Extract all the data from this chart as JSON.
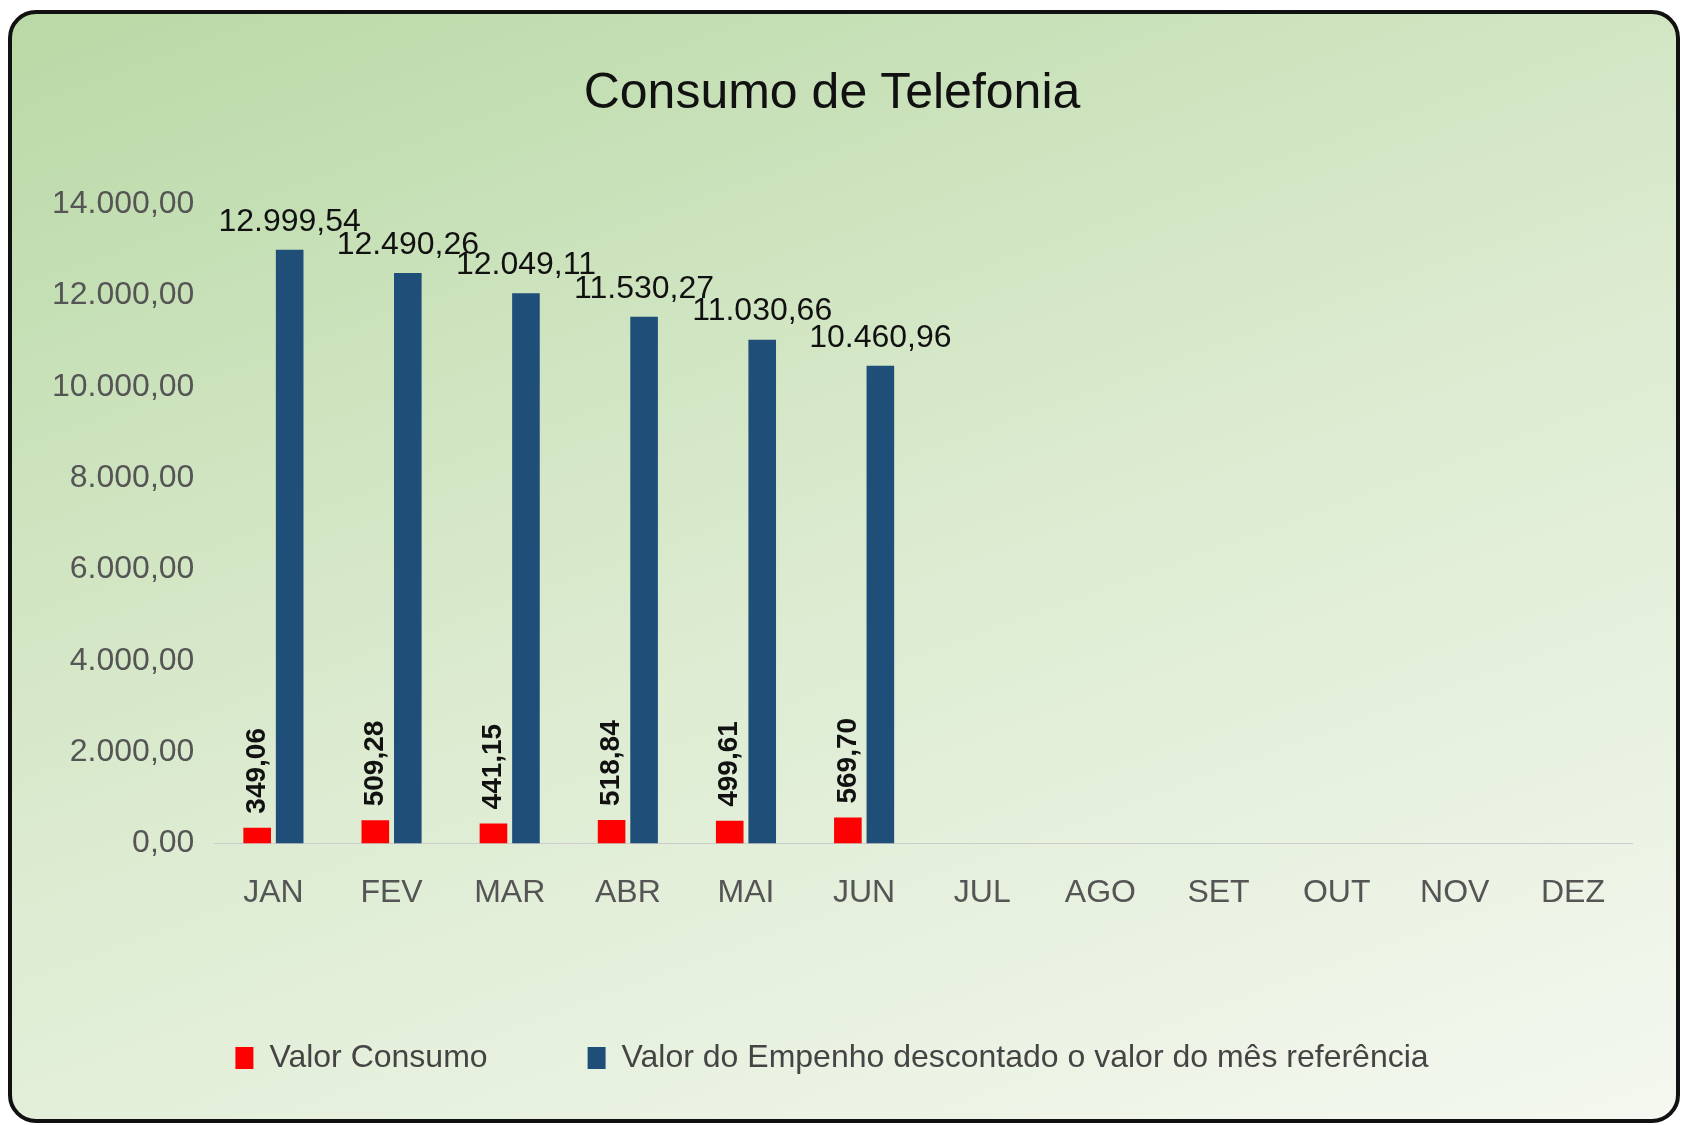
{
  "chart_data": {
    "type": "bar",
    "title": "Consumo de Telefonia",
    "categories": [
      "JAN",
      "FEV",
      "MAR",
      "ABR",
      "MAI",
      "JUN",
      "JUL",
      "AGO",
      "SET",
      "OUT",
      "NOV",
      "DEZ"
    ],
    "series": [
      {
        "name": "Valor Consumo",
        "color": "#ff0000",
        "values": [
          349.06,
          509.28,
          441.15,
          518.84,
          499.61,
          569.7,
          null,
          null,
          null,
          null,
          null,
          null
        ],
        "value_labels": [
          "349,06",
          "509,28",
          "441,15",
          "518,84",
          "499,61",
          "569,70",
          null,
          null,
          null,
          null,
          null,
          null
        ]
      },
      {
        "name": "Valor do Empenho descontado o valor do mês referência",
        "color": "#1f4e79",
        "values": [
          12999.54,
          12490.26,
          12049.11,
          11530.27,
          11030.66,
          10460.96,
          null,
          null,
          null,
          null,
          null,
          null
        ],
        "value_labels": [
          "12.999,54",
          "12.490,26",
          "12.049,11",
          "11.530,27",
          "11.030,66",
          "10.460,96",
          null,
          null,
          null,
          null,
          null,
          null
        ]
      }
    ],
    "ylim": [
      0,
      14000
    ],
    "yticks": [
      {
        "value": 0,
        "label": "0,00"
      },
      {
        "value": 2000,
        "label": "2.000,00"
      },
      {
        "value": 4000,
        "label": "4.000,00"
      },
      {
        "value": 6000,
        "label": "6.000,00"
      },
      {
        "value": 8000,
        "label": "8.000,00"
      },
      {
        "value": 10000,
        "label": "10.000,00"
      },
      {
        "value": 12000,
        "label": "12.000,00"
      },
      {
        "value": 14000,
        "label": "14.000,00"
      }
    ],
    "grid": false,
    "legend": "bottom"
  }
}
